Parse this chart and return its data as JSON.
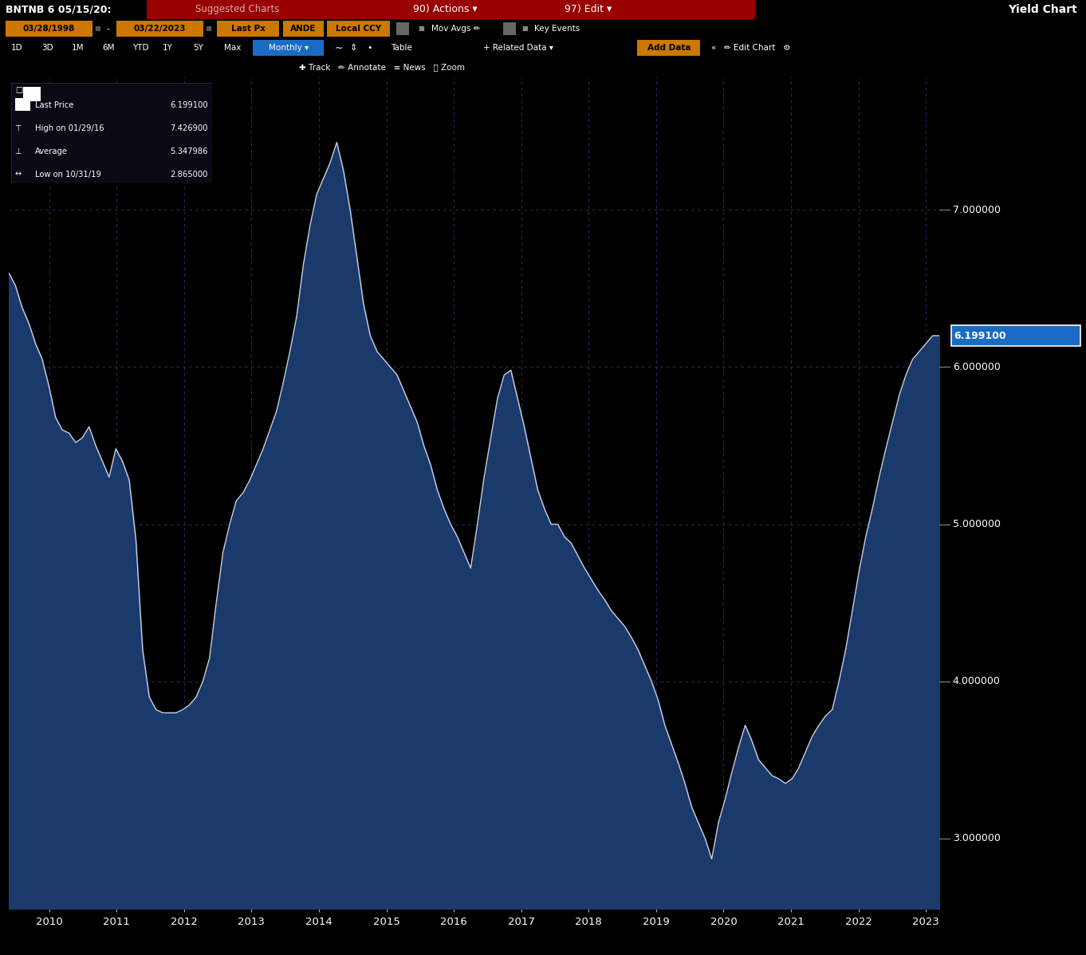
{
  "fill_color": "#1a3a6b",
  "line_color": "#ccccdd",
  "bg_color": "#000000",
  "grid_color": "#2a2a55",
  "header_red": "#7a0000",
  "orange": "#cc7700",
  "blue_btn": "#1a6bc4",
  "ymin": 2.55,
  "ymax": 7.85,
  "yticks": [
    3.0,
    4.0,
    5.0,
    6.0,
    7.0
  ],
  "last_price": 6.1991,
  "legend": [
    {
      "label": "Last Price",
      "value": "6.199100"
    },
    {
      "label": "High on 01/29/16",
      "value": "7.426900"
    },
    {
      "label": "Average",
      "value": "5.347986"
    },
    {
      "label": "Low on 10/31/19",
      "value": "2.865000"
    }
  ],
  "values": [
    6.6,
    6.52,
    6.38,
    6.28,
    6.15,
    6.05,
    5.88,
    5.68,
    5.6,
    5.58,
    5.52,
    5.55,
    5.62,
    5.5,
    5.4,
    5.3,
    5.48,
    5.4,
    5.28,
    4.9,
    4.2,
    3.9,
    3.82,
    3.8,
    3.8,
    3.8,
    3.82,
    3.85,
    3.9,
    4.0,
    4.15,
    4.5,
    4.82,
    5.0,
    5.15,
    5.2,
    5.28,
    5.38,
    5.48,
    5.6,
    5.72,
    5.9,
    6.1,
    6.32,
    6.65,
    6.9,
    7.1,
    7.2,
    7.3,
    7.43,
    7.25,
    7.0,
    6.7,
    6.4,
    6.2,
    6.1,
    6.05,
    6.0,
    5.95,
    5.85,
    5.75,
    5.65,
    5.5,
    5.38,
    5.22,
    5.1,
    5.0,
    4.92,
    4.82,
    4.72,
    5.0,
    5.3,
    5.55,
    5.8,
    5.95,
    5.98,
    5.8,
    5.62,
    5.42,
    5.22,
    5.1,
    5.0,
    5.0,
    4.92,
    4.88,
    4.8,
    4.72,
    4.65,
    4.58,
    4.52,
    4.45,
    4.4,
    4.35,
    4.28,
    4.2,
    4.1,
    4.0,
    3.88,
    3.72,
    3.6,
    3.48,
    3.35,
    3.2,
    3.1,
    3.0,
    2.87,
    3.1,
    3.25,
    3.42,
    3.58,
    3.72,
    3.62,
    3.5,
    3.45,
    3.4,
    3.38,
    3.35,
    3.38,
    3.45,
    3.55,
    3.65,
    3.72,
    3.78,
    3.82,
    4.0,
    4.2,
    4.45,
    4.7,
    4.92,
    5.1,
    5.3,
    5.48,
    5.65,
    5.82,
    5.95,
    6.05,
    6.1,
    6.15,
    6.2,
    6.2
  ],
  "xtick_labels": [
    "2010",
    "2011",
    "2012",
    "2013",
    "2014",
    "2015",
    "2016",
    "2017",
    "2018",
    "2019",
    "2020",
    "2021",
    "2022",
    "2023"
  ],
  "xtick_fracs": [
    0.0434,
    0.1159,
    0.1884,
    0.2609,
    0.3334,
    0.4059,
    0.4783,
    0.5508,
    0.6232,
    0.6957,
    0.7681,
    0.8406,
    0.9131,
    0.9855
  ]
}
